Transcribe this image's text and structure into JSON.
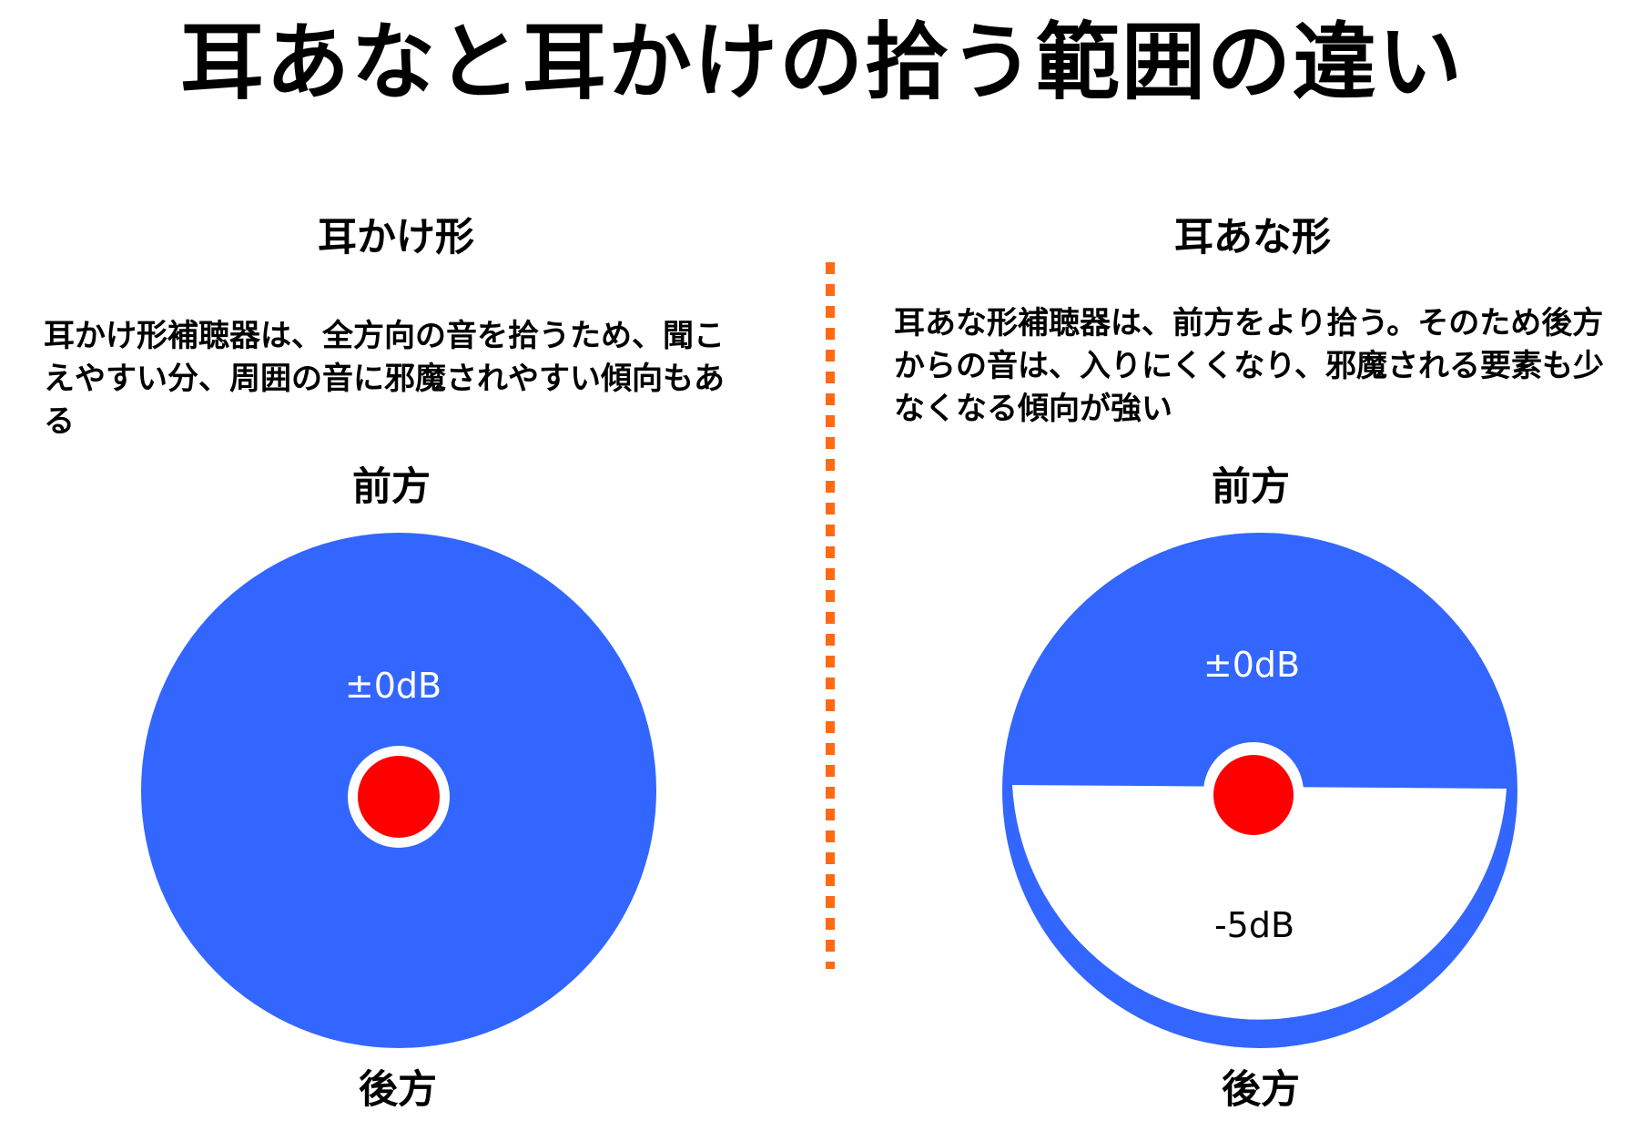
{
  "title": "耳あなと耳かけの拾う範囲の違い",
  "colors": {
    "pickup_area": "#3366FF",
    "ear_dot": "#FF0000",
    "divider": "#FF6A13",
    "background": "#FFFFFF"
  },
  "left_panel": {
    "heading": "耳かけ形",
    "description": "耳かけ形補聴器は、全方向の音を拾うため、聞こえやすい分、周囲の音に邪魔されやすい傾向もある",
    "front_label": "前方",
    "back_label": "後方",
    "front_level": "±0dB"
  },
  "right_panel": {
    "heading": "耳あな形",
    "description": "耳あな形補聴器は、前方をより拾う。そのため後方からの音は、入りにくくなり、邪魔される要素も少なくなる傾向が強い",
    "front_label": "前方",
    "back_label": "後方",
    "front_level": "±0dB",
    "back_level": "-5dB"
  }
}
